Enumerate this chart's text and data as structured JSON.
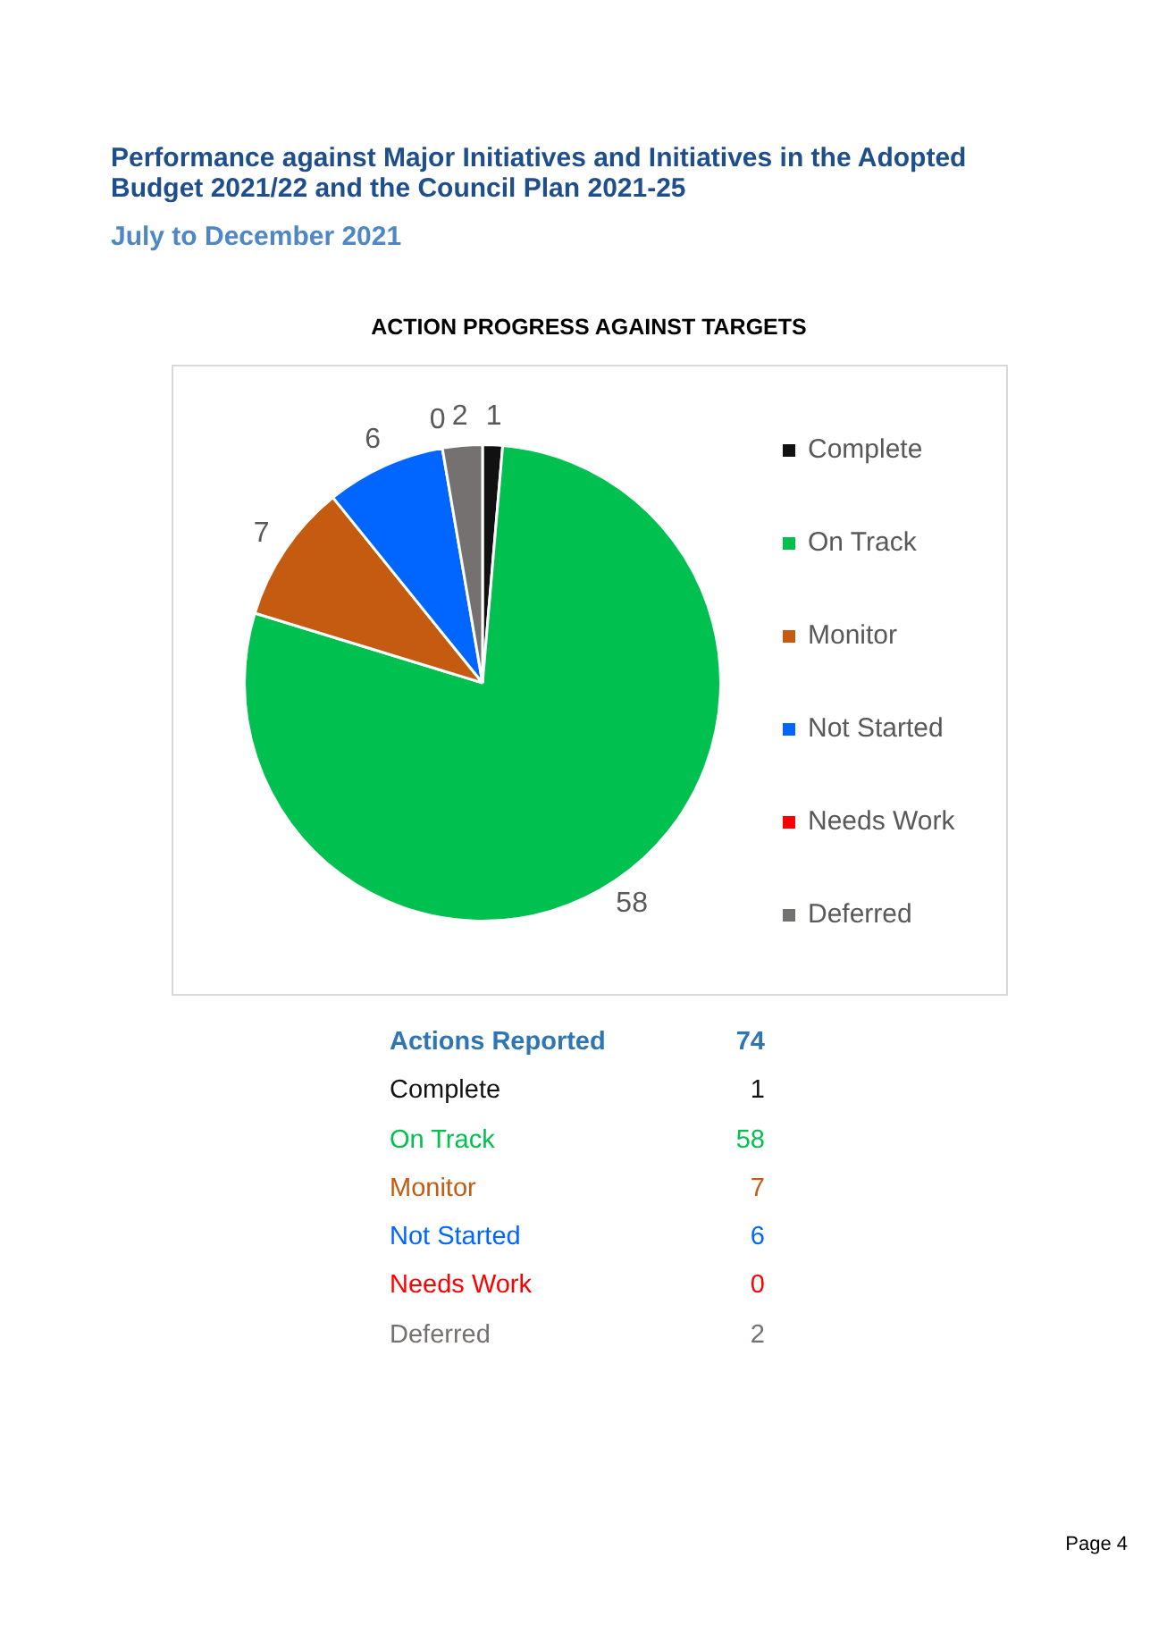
{
  "chart_data": [
    {
      "type": "pie",
      "title": "Performance against Major Initiatives and Initiatives in the Adopted Budget 2021/22 and the Council Plan 2021-25",
      "subtitle": "July to December 2021",
      "categories": [
        "Complete",
        "On Track",
        "Monitor",
        "Not Started",
        "Needs Work",
        "Deferred"
      ],
      "values": [
        1,
        58,
        7,
        6,
        0,
        2
      ],
      "value_labels": [
        "1",
        "58",
        "7",
        "6",
        "0",
        "2"
      ],
      "colors": [
        "#111111",
        "#00c050",
        "#c55a11",
        "#0066ff",
        "#ff0000",
        "#767171"
      ],
      "legend": "right",
      "annotations": [
        "ACTION PROGRESS AGAINST TARGETS"
      ]
    },
    {
      "type": "other",
      "categories": [
        "Complete",
        "On Track",
        "Monitor",
        "Not Started",
        "Needs Work",
        "Deferred"
      ],
      "values": [
        1,
        58,
        7,
        6,
        0,
        2
      ],
      "colors": [
        "#111111",
        "#00c050",
        "#c55a11",
        "#0066ff",
        "#ff0000",
        "#767171"
      ],
      "data_labels": true,
      "annotations": [
        "Actions Reported",
        "74",
        "Page 4"
      ]
    }
  ]
}
